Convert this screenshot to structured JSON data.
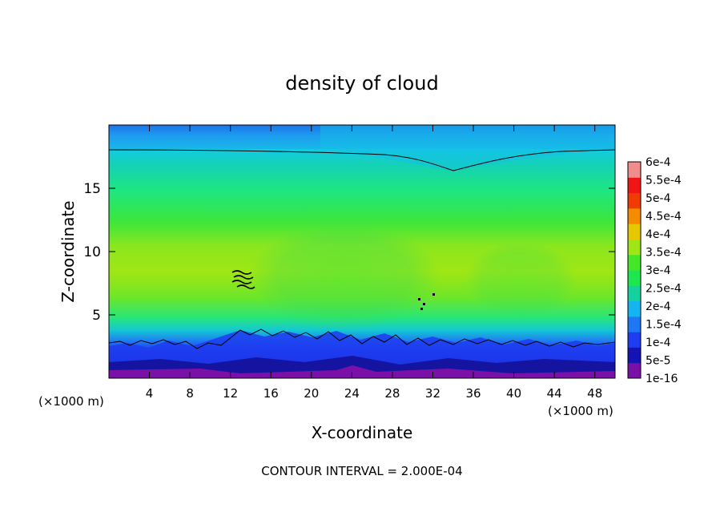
{
  "chart_data": {
    "type": "heatmap",
    "title": "density of cloud",
    "xlabel": "X-coordinate",
    "ylabel": "Z-coordinate",
    "x_unit_left": "(×1000 m)",
    "x_unit_right": "(×1000 m)",
    "footer": "CONTOUR INTERVAL = 2.000E-04",
    "xlim": [
      0,
      50
    ],
    "ylim": [
      0,
      20
    ],
    "x_ticks": [
      "4",
      "8",
      "12",
      "16",
      "20",
      "24",
      "28",
      "32",
      "36",
      "40",
      "44",
      "48"
    ],
    "y_ticks": [
      "5",
      "10",
      "15"
    ],
    "colorbar": {
      "labels": [
        "1e-16",
        "5e-5",
        "1e-4",
        "1.5e-4",
        "2e-4",
        "2.5e-4",
        "3e-4",
        "3.5e-4",
        "4e-4",
        "4.5e-4",
        "5e-4",
        "5.5e-4",
        "6e-4"
      ],
      "colors": [
        "#7a10a8",
        "#1414b4",
        "#1e3cf0",
        "#1e78f5",
        "#14b4f0",
        "#14d2a0",
        "#1ee650",
        "#46e628",
        "#a0e614",
        "#e6c800",
        "#f58c00",
        "#f03c00",
        "#f01414",
        "#f08c8c"
      ]
    },
    "contour_interval": 0.0002,
    "contour_levels": [
      0.0002
    ],
    "grid": false
  }
}
